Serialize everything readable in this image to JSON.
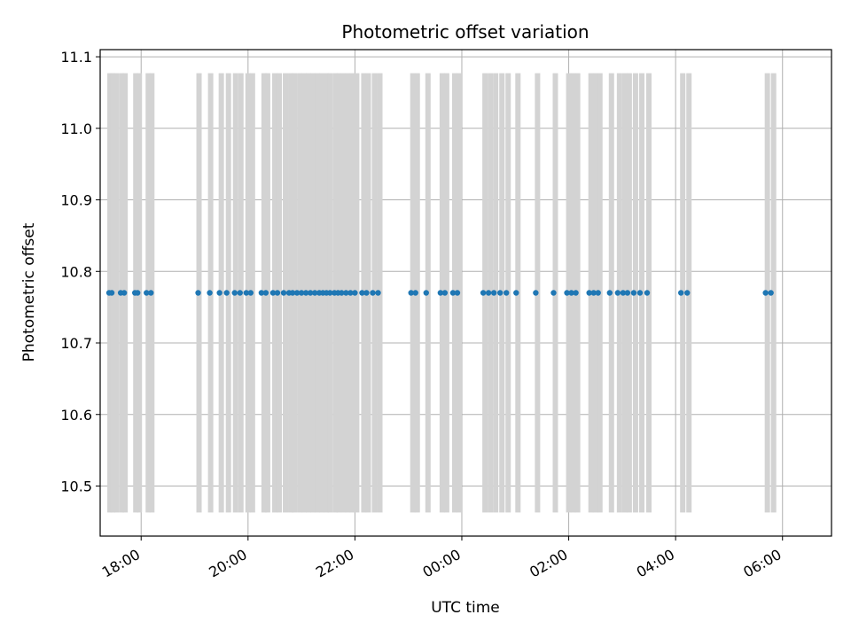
{
  "chart_data": {
    "type": "scatter",
    "title": "Photometric offset variation",
    "xlabel": "UTC time",
    "ylabel": "Photometric offset",
    "x_ticks": [
      "18:00",
      "20:00",
      "22:00",
      "00:00",
      "02:00",
      "04:00",
      "06:00"
    ],
    "y_ticks": [
      "10.5",
      "10.6",
      "10.7",
      "10.8",
      "10.9",
      "11.0",
      "11.1"
    ],
    "xlim": [
      "17:14",
      "06:55"
    ],
    "ylim": [
      10.43,
      11.11
    ],
    "grid": true,
    "colors": {
      "points": "#1f77b4",
      "bands": "#d3d3d3",
      "grid": "#b0b0b0"
    },
    "bands_y_range": [
      10.463,
      11.077
    ],
    "bands": [
      "17:25",
      "17:28",
      "17:32",
      "17:38",
      "17:42",
      "17:54",
      "17:58",
      "18:08",
      "18:12",
      "19:05",
      "19:18",
      "19:30",
      "19:38",
      "19:46",
      "19:52",
      "20:00",
      "20:05",
      "20:18",
      "20:22",
      "20:30",
      "20:35",
      "20:42",
      "20:48",
      "20:52",
      "20:58",
      "21:03",
      "21:08",
      "21:13",
      "21:18",
      "21:23",
      "21:28",
      "21:32",
      "21:38",
      "21:42",
      "21:47",
      "21:52",
      "21:57",
      "22:02",
      "22:10",
      "22:15",
      "22:22",
      "22:28",
      "23:05",
      "23:10",
      "23:22",
      "23:38",
      "23:43",
      "23:52",
      "23:57",
      "00:26",
      "00:32",
      "00:38",
      "00:45",
      "00:52",
      "01:03",
      "01:25",
      "01:45",
      "02:00",
      "02:05",
      "02:10",
      "02:25",
      "02:30",
      "02:35",
      "02:48",
      "02:57",
      "03:03",
      "03:08",
      "03:15",
      "03:22",
      "03:30",
      "04:08",
      "04:15",
      "05:43",
      "05:50"
    ],
    "series": [
      {
        "x": [
          "17:24",
          "17:27",
          "17:37",
          "17:41",
          "17:53",
          "17:56",
          "18:06",
          "18:11",
          "19:04",
          "19:17",
          "19:28",
          "19:36",
          "19:45",
          "19:51",
          "19:58",
          "20:03",
          "20:15",
          "20:20",
          "20:28",
          "20:33",
          "20:40",
          "20:46",
          "20:50",
          "20:55",
          "21:00",
          "21:05",
          "21:10",
          "21:15",
          "21:20",
          "21:24",
          "21:28",
          "21:32",
          "21:37",
          "21:41",
          "21:45",
          "21:50",
          "21:55",
          "22:00",
          "22:08",
          "22:13",
          "22:20",
          "22:26",
          "23:03",
          "23:08",
          "23:20",
          "23:36",
          "23:41",
          "23:50",
          "23:55",
          "00:24",
          "00:30",
          "00:36",
          "00:43",
          "00:50",
          "01:01",
          "01:23",
          "01:43",
          "01:58",
          "02:03",
          "02:08",
          "02:23",
          "02:28",
          "02:33",
          "02:46",
          "02:55",
          "03:01",
          "03:06",
          "03:13",
          "03:20",
          "03:28",
          "04:06",
          "04:13",
          "05:41",
          "05:47"
        ],
        "y": [
          10.77,
          10.77,
          10.77,
          10.77,
          10.77,
          10.77,
          10.77,
          10.77,
          10.77,
          10.77,
          10.77,
          10.77,
          10.77,
          10.77,
          10.77,
          10.77,
          10.77,
          10.77,
          10.77,
          10.77,
          10.77,
          10.77,
          10.77,
          10.77,
          10.77,
          10.77,
          10.77,
          10.77,
          10.77,
          10.77,
          10.77,
          10.77,
          10.77,
          10.77,
          10.77,
          10.77,
          10.77,
          10.77,
          10.77,
          10.77,
          10.77,
          10.77,
          10.77,
          10.77,
          10.77,
          10.77,
          10.77,
          10.77,
          10.77,
          10.77,
          10.77,
          10.77,
          10.77,
          10.77,
          10.77,
          10.77,
          10.77,
          10.77,
          10.77,
          10.77,
          10.77,
          10.77,
          10.77,
          10.77,
          10.77,
          10.77,
          10.77,
          10.77,
          10.77,
          10.77,
          10.77,
          10.77,
          10.77,
          10.77
        ]
      }
    ]
  }
}
